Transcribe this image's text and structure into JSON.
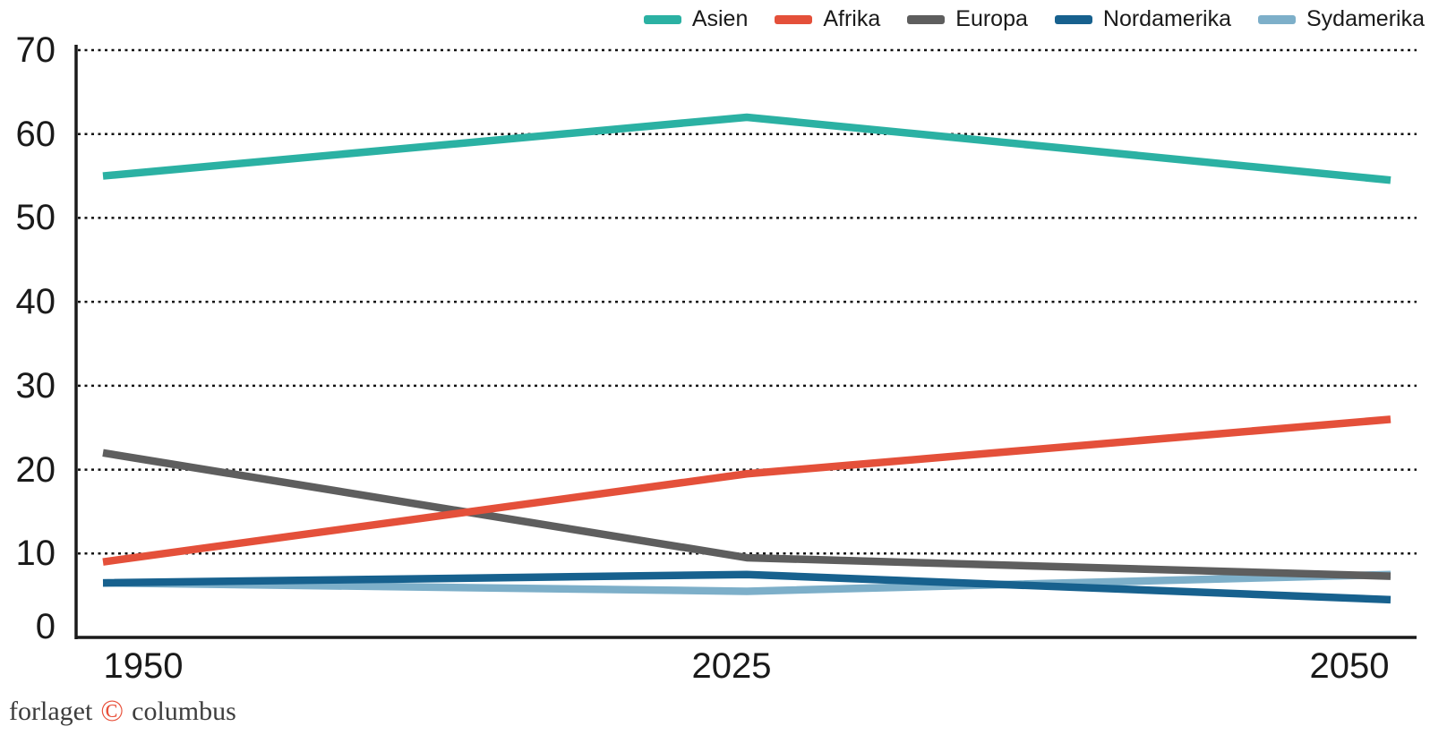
{
  "chart_data": {
    "type": "line",
    "title": "",
    "xlabel": "",
    "ylabel": "",
    "categories": [
      "1950",
      "2025",
      "2050"
    ],
    "series": [
      {
        "name": "Asien",
        "color": "#2bb1a3",
        "values": [
          55,
          62,
          54.5
        ]
      },
      {
        "name": "Afrika",
        "color": "#e4503a",
        "values": [
          9,
          19.5,
          26
        ]
      },
      {
        "name": "Europa",
        "color": "#5e5e5e",
        "values": [
          22,
          9.5,
          7.3
        ]
      },
      {
        "name": "Nordamerika",
        "color": "#17618e",
        "values": [
          6.5,
          7.5,
          4.5
        ]
      },
      {
        "name": "Sydamerika",
        "color": "#7dafc9",
        "values": [
          6.5,
          5.5,
          7.5
        ]
      }
    ],
    "ylim": [
      0,
      70
    ],
    "y_ticks": [
      0,
      10,
      20,
      30,
      40,
      50,
      60,
      70
    ],
    "grid": "horizontal-dashed",
    "legend_position": "top-right"
  },
  "footer": {
    "publisher_left": "forlaget",
    "copyright_symbol": "©",
    "publisher_right": "columbus"
  },
  "colors": {
    "axis": "#1a1a1a",
    "gridline": "#111111",
    "tick_text": "#1a1a1a",
    "footer_text": "#3d3d3d",
    "copyright": "#e8503a",
    "background": "#ffffff"
  }
}
